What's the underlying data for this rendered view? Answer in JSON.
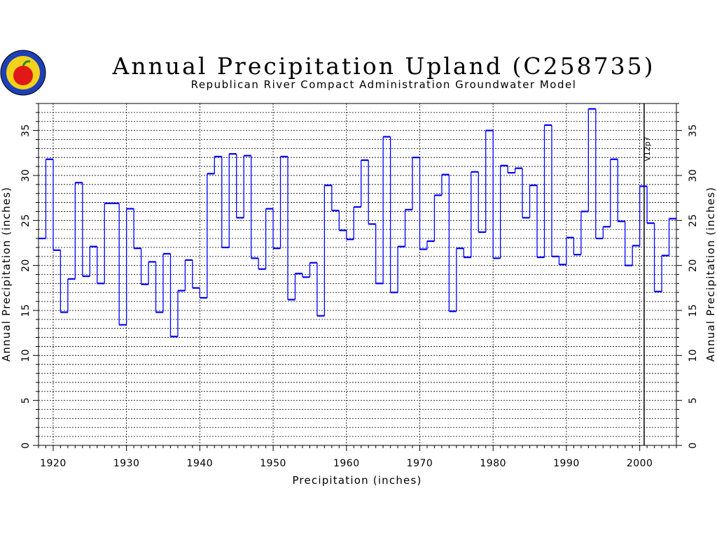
{
  "chart_data": {
    "type": "line",
    "style": "step",
    "title": "Annual Precipitation Upland (C258735)",
    "subtitle": "Republican River Compact Administration Groundwater Model",
    "xlabel": "Precipitation (inches)",
    "ylabel": "Annual Precipitation (inches)",
    "ylabel_right": "Annual Precipitation (inches)",
    "xlim": [
      1918,
      2005
    ],
    "ylim": [
      0,
      38
    ],
    "x_ticks": [
      "1920",
      "1930",
      "1940",
      "1950",
      "1960",
      "1970",
      "1980",
      "1990",
      "2000"
    ],
    "y_ticks": [
      "0",
      "5",
      "10",
      "15",
      "20",
      "25",
      "30",
      "35"
    ],
    "grid": true,
    "line_color": "#0000ff",
    "marker_x": 2000.6,
    "annotation": "V12p7",
    "x": [
      1918,
      1919,
      1920,
      1921,
      1922,
      1923,
      1924,
      1925,
      1926,
      1927,
      1928,
      1929,
      1930,
      1931,
      1932,
      1933,
      1934,
      1935,
      1936,
      1937,
      1938,
      1939,
      1940,
      1941,
      1942,
      1943,
      1944,
      1945,
      1946,
      1947,
      1948,
      1949,
      1950,
      1951,
      1952,
      1953,
      1954,
      1955,
      1956,
      1957,
      1958,
      1959,
      1960,
      1961,
      1962,
      1963,
      1964,
      1965,
      1966,
      1967,
      1968,
      1969,
      1970,
      1971,
      1972,
      1973,
      1974,
      1975,
      1976,
      1977,
      1978,
      1979,
      1980,
      1981,
      1982,
      1983,
      1984,
      1985,
      1986,
      1987,
      1988,
      1989,
      1990,
      1991,
      1992,
      1993,
      1994,
      1995,
      1996,
      1997,
      1998,
      1999,
      2000,
      2001,
      2002,
      2003,
      2004
    ],
    "values": [
      23.0,
      31.8,
      21.7,
      14.8,
      18.5,
      29.2,
      18.8,
      22.1,
      18.0,
      26.9,
      26.9,
      13.4,
      26.3,
      21.9,
      17.9,
      20.4,
      14.8,
      21.3,
      12.1,
      17.2,
      20.6,
      17.5,
      16.4,
      30.2,
      32.1,
      22.0,
      32.4,
      25.3,
      32.2,
      20.8,
      19.6,
      26.3,
      21.9,
      32.1,
      16.2,
      19.1,
      18.7,
      20.3,
      14.4,
      28.9,
      26.1,
      23.9,
      22.9,
      26.5,
      31.7,
      24.6,
      18.0,
      34.3,
      17.0,
      22.1,
      26.2,
      32.0,
      21.8,
      22.7,
      27.8,
      30.1,
      14.9,
      21.9,
      20.9,
      30.4,
      23.7,
      35.0,
      20.8,
      31.1,
      30.3,
      30.8,
      25.3,
      28.9,
      20.9,
      35.6,
      21.0,
      20.1,
      23.1,
      21.2,
      26.0,
      37.4,
      23.0,
      24.3,
      31.8,
      24.9,
      20.0,
      22.2,
      28.8,
      24.7,
      17.1,
      21.1,
      25.2
    ]
  }
}
